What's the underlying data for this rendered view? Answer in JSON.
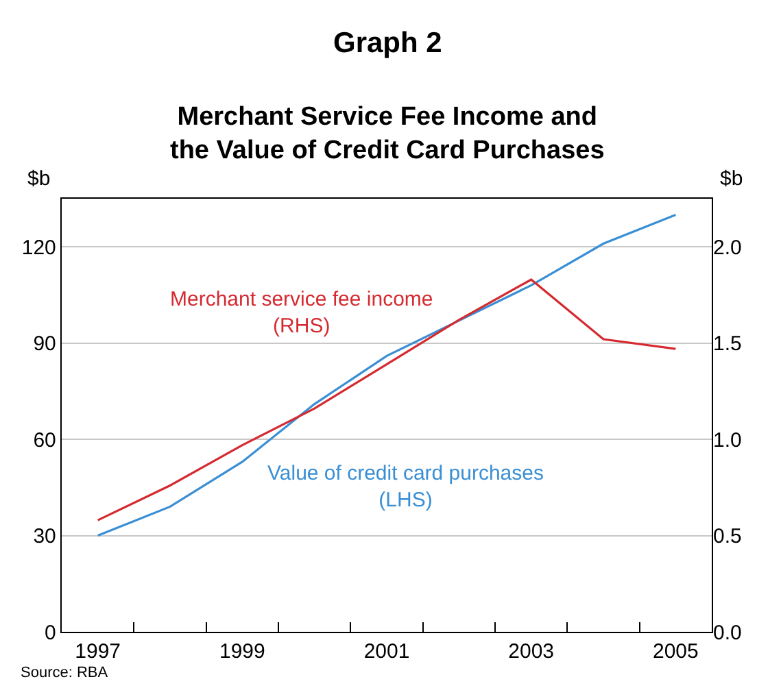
{
  "chart_data": {
    "type": "line",
    "title": "Graph 2",
    "subtitle": "Merchant Service Fee Income and\nthe Value of Credit Card Purchases",
    "ylabel": "$b",
    "y2label": "$b",
    "x": [
      1997,
      1998,
      1999,
      2000,
      2001,
      2002,
      2003,
      2004,
      2005
    ],
    "series": [
      {
        "name": "Value of credit card purchases\n(LHS)",
        "color": "#3a8fd4",
        "values": [
          30,
          39,
          53,
          71,
          86,
          97,
          108,
          121,
          130
        ]
      },
      {
        "name": "Merchant service fee income\n(RHS)",
        "color": "#d42a30",
        "axis": "y2",
        "values": [
          0.58,
          0.76,
          0.97,
          1.16,
          1.39,
          1.62,
          1.83,
          1.52,
          1.47
        ]
      }
    ],
    "xlim": [
      1996.5,
      2005.5
    ],
    "xticks": [
      1997,
      {
        "value": 1997.5,
        "label": null
      },
      {
        "value": 1998.5,
        "label": null
      },
      1999,
      {
        "value": 1999.5,
        "label": null
      },
      {
        "value": 2000.5,
        "label": null
      },
      2001,
      {
        "value": 2001.5,
        "label": null
      },
      {
        "value": 2002.5,
        "label": null
      },
      2003,
      {
        "value": 2003.5,
        "label": null
      },
      {
        "value": 2004.5,
        "label": null
      },
      2005
    ],
    "ylim": [
      0,
      135
    ],
    "yticks": [
      0,
      30,
      60,
      90,
      120
    ],
    "y2lim": [
      0,
      2.25
    ],
    "y2ticks": [
      {
        "value": 0,
        "label": "0.0"
      },
      {
        "value": 0.5,
        "label": "0.5"
      },
      {
        "value": 1,
        "label": "1.0"
      },
      {
        "value": 1.5,
        "label": "1.5"
      },
      {
        "value": 2,
        "label": "2.0"
      }
    ],
    "grid": "y",
    "legend": false,
    "line_style": "solid",
    "marker": "none",
    "annotations": [
      "Source: RBA"
    ]
  }
}
